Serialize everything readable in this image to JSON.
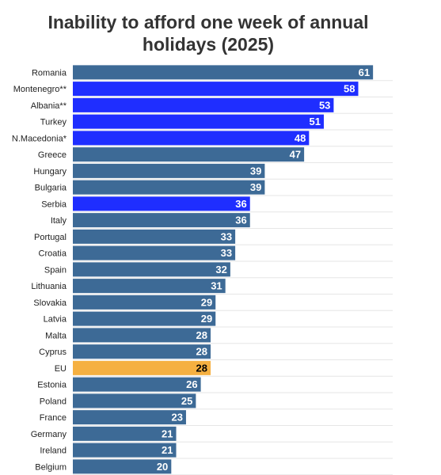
{
  "chart_data": {
    "type": "bar",
    "orientation": "horizontal",
    "title": "Inability to afford one week of annual holidays (2025)",
    "categories": [
      "Romania",
      "Montenegro**",
      "Albania**",
      "Turkey",
      "N.Macedonia*",
      "Greece",
      "Hungary",
      "Bulgaria",
      "Serbia",
      "Italy",
      "Portugal",
      "Croatia",
      "Spain",
      "Lithuania",
      "Slovakia",
      "Latvia",
      "Malta",
      "Cyprus",
      "EU",
      "Estonia",
      "Poland",
      "France",
      "Germany",
      "Ireland",
      "Belgium"
    ],
    "values": [
      61,
      58,
      53,
      51,
      48,
      47,
      39,
      39,
      36,
      36,
      33,
      33,
      32,
      31,
      29,
      29,
      28,
      28,
      28,
      26,
      25,
      23,
      21,
      21,
      20
    ],
    "colors": [
      "#3d6a96",
      "#1f2eff",
      "#1f2eff",
      "#1f2eff",
      "#1f2eff",
      "#3d6a96",
      "#3d6a96",
      "#3d6a96",
      "#1f2eff",
      "#3d6a96",
      "#3d6a96",
      "#3d6a96",
      "#3d6a96",
      "#3d6a96",
      "#3d6a96",
      "#3d6a96",
      "#3d6a96",
      "#3d6a96",
      "#f5b041",
      "#3d6a96",
      "#3d6a96",
      "#3d6a96",
      "#3d6a96",
      "#3d6a96",
      "#3d6a96"
    ],
    "value_label_colors": [
      "#ffffff",
      "#ffffff",
      "#ffffff",
      "#ffffff",
      "#ffffff",
      "#ffffff",
      "#ffffff",
      "#ffffff",
      "#ffffff",
      "#ffffff",
      "#ffffff",
      "#ffffff",
      "#ffffff",
      "#ffffff",
      "#ffffff",
      "#ffffff",
      "#ffffff",
      "#ffffff",
      "#000000",
      "#ffffff",
      "#ffffff",
      "#ffffff",
      "#ffffff",
      "#ffffff",
      "#ffffff"
    ],
    "xlim": [
      0,
      65
    ]
  }
}
